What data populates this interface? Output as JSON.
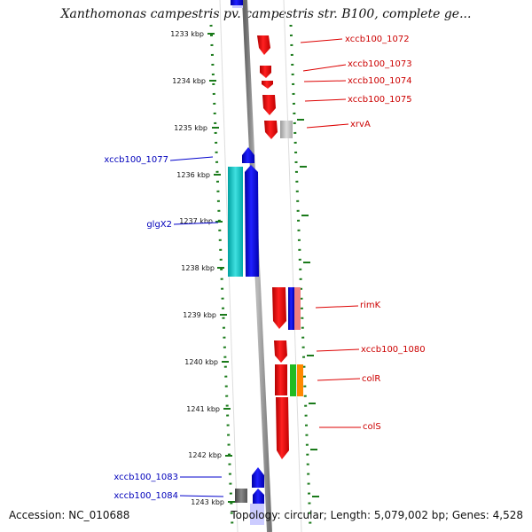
{
  "title": "Xanthomonas campestris pv. campestris str. B100, complete ge...",
  "accession": "Accession: NC_010688",
  "summary": "Topology: circular; Length: 5,079,002 bp; Genes: 4,528",
  "colors": {
    "forward_strand": "#ee0000",
    "reverse_strand": "#0000ee",
    "forward_label": "#cc0000",
    "reverse_label": "#0000bb",
    "axis_tick": "#1a7a1a",
    "backbone": "#888888"
  },
  "ticks": [
    "1233 kbp",
    "1234 kbp",
    "1235 kbp",
    "1236 kbp",
    "1237 kbp",
    "1238 kbp",
    "1239 kbp",
    "1240 kbp",
    "1241 kbp",
    "1242 kbp",
    "1243 kbp"
  ],
  "forward_labels": [
    "xccb100_1072",
    "xccb100_1073",
    "xccb100_1074",
    "xccb100_1075",
    "xrvA",
    "rimK",
    "xccb100_1080",
    "colR",
    "colS"
  ],
  "reverse_labels": [
    "xccb100_1077",
    "glgX2",
    "xccb100_1083",
    "xccb100_1084"
  ]
}
